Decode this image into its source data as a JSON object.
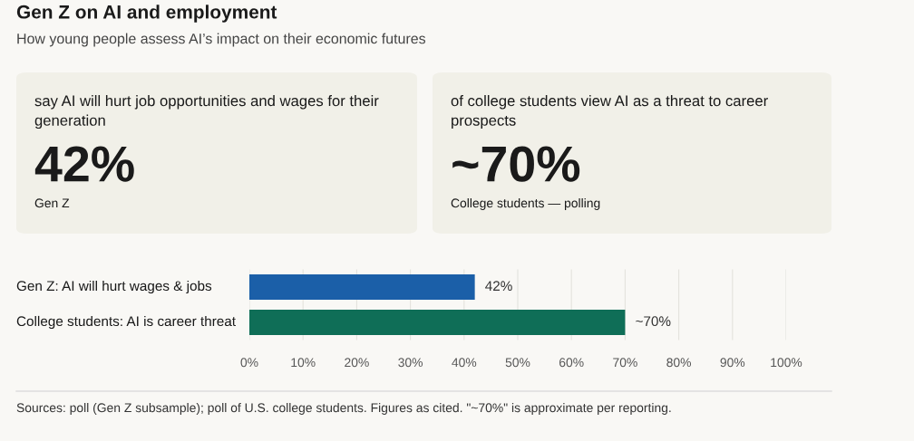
{
  "chart_data": [
    {
      "type": "other",
      "annotations": [
        "say AI will hurt job opportunities and wages for their generation",
        "42%",
        "Gen Z"
      ]
    },
    {
      "type": "other",
      "annotations": [
        "of college students view AI as a threat to career prospects",
        "~70%",
        "College students — polling"
      ]
    },
    {
      "type": "bar",
      "orientation": "horizontal",
      "title": "Gen Z on AI and employment",
      "subtitle": "How young people assess AI’s impact on their economic futures",
      "categories": [
        "Gen Z: AI will hurt wages & jobs",
        "College students: AI is career threat"
      ],
      "values": [
        42,
        70
      ],
      "colors": [
        "#1b5fa8",
        "#0f6e57"
      ],
      "value_labels": [
        "42%",
        "~70%"
      ],
      "xlim": [
        0,
        100
      ],
      "xticks": [
        {
          "value": 0,
          "label": "0%"
        },
        {
          "value": 10,
          "label": "10%"
        },
        {
          "value": 20,
          "label": "20%"
        },
        {
          "value": 30,
          "label": "30%"
        },
        {
          "value": 40,
          "label": "40%"
        },
        {
          "value": 50,
          "label": "50%"
        },
        {
          "value": 60,
          "label": "60%"
        },
        {
          "value": 70,
          "label": "70%"
        },
        {
          "value": 80,
          "label": "80%"
        },
        {
          "value": 90,
          "label": "90%"
        },
        {
          "value": 100,
          "label": "100%"
        }
      ],
      "grid": "x",
      "annotations": [
        "Sources: poll (Gen Z subsample); poll of U.S. college students. Figures as cited. \"~70%\" is approximate per reporting."
      ]
    }
  ]
}
